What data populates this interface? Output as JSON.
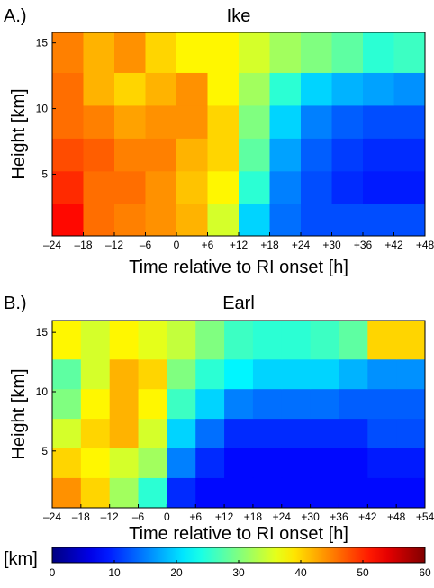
{
  "chart_data": [
    {
      "type": "heatmap",
      "panel_label": "A.)",
      "title": "Ike",
      "xlabel": "Time relative to RI onset [h]",
      "ylabel": "Height [km]",
      "xlim": [
        -24,
        48
      ],
      "ylim": [
        0.3,
        15.8
      ],
      "xticks": [
        {
          "value": -24,
          "label": "–24"
        },
        {
          "value": -18,
          "label": "–18"
        },
        {
          "value": -12,
          "label": "–12"
        },
        {
          "value": -6,
          "label": "–6"
        },
        0,
        {
          "value": 6,
          "label": "+6"
        },
        {
          "value": 12,
          "label": "+12"
        },
        {
          "value": 18,
          "label": "+18"
        },
        {
          "value": 24,
          "label": "+24"
        },
        {
          "value": 30,
          "label": "+30"
        },
        {
          "value": 36,
          "label": "+36"
        },
        {
          "value": 42,
          "label": "+42"
        },
        {
          "value": 48,
          "label": "+48"
        }
      ],
      "yticks": [
        5,
        10,
        15
      ],
      "x": [
        -21,
        -15,
        -9,
        -3,
        3,
        9,
        15,
        21,
        27,
        33,
        39,
        45
      ],
      "y": [
        1.5,
        4,
        6.5,
        9,
        11.5,
        14
      ],
      "z": [
        [
          52,
          46,
          45,
          44,
          42,
          35,
          20,
          14,
          12,
          12,
          12,
          12
        ],
        [
          50,
          46,
          46,
          44,
          41,
          38,
          25,
          15,
          12,
          10,
          9,
          9
        ],
        [
          48,
          47,
          45,
          45,
          42,
          40,
          28,
          17,
          13,
          11,
          10,
          10
        ],
        [
          46,
          45,
          43,
          44,
          44,
          40,
          30,
          20,
          15,
          13,
          12,
          12
        ],
        [
          46,
          42,
          40,
          42,
          44,
          38,
          32,
          25,
          20,
          18,
          17,
          16
        ],
        [
          45,
          42,
          44,
          40,
          38,
          38,
          35,
          32,
          30,
          28,
          25,
          26
        ]
      ]
    },
    {
      "type": "heatmap",
      "panel_label": "B.)",
      "title": "Earl",
      "xlabel": "Time relative to RI onset [h]",
      "ylabel": "Height [km]",
      "xlim": [
        -24,
        54
      ],
      "ylim": [
        0.2,
        16
      ],
      "xticks": [
        {
          "value": -24,
          "label": "–24"
        },
        {
          "value": -18,
          "label": "–18"
        },
        {
          "value": -12,
          "label": "–12"
        },
        {
          "value": -6,
          "label": "–6"
        },
        0,
        {
          "value": 6,
          "label": "+6"
        },
        {
          "value": 12,
          "label": "+12"
        },
        {
          "value": 18,
          "label": "+18"
        },
        {
          "value": 24,
          "label": "+24"
        },
        {
          "value": 30,
          "label": "+30"
        },
        {
          "value": 36,
          "label": "+36"
        },
        {
          "value": 42,
          "label": "+42"
        },
        {
          "value": 48,
          "label": "+48"
        },
        {
          "value": 54,
          "label": "+54"
        }
      ],
      "yticks": [
        5,
        10,
        15
      ],
      "x": [
        -21,
        -15,
        -9,
        -3,
        3,
        9,
        15,
        21,
        27,
        33,
        39,
        45,
        51
      ],
      "y": [
        1.5,
        4,
        6.5,
        9,
        11.5,
        14
      ],
      "z": [
        [
          44,
          40,
          32,
          25,
          10,
          8,
          8,
          8,
          8,
          8,
          8,
          8,
          8
        ],
        [
          40,
          38,
          35,
          32,
          15,
          10,
          8,
          8,
          8,
          8,
          8,
          9,
          9
        ],
        [
          35,
          40,
          42,
          35,
          20,
          14,
          10,
          10,
          10,
          10,
          10,
          12,
          12
        ],
        [
          30,
          38,
          42,
          38,
          26,
          20,
          15,
          14,
          14,
          14,
          13,
          13,
          13
        ],
        [
          28,
          35,
          42,
          40,
          30,
          25,
          22,
          20,
          20,
          20,
          18,
          16,
          16
        ],
        [
          38,
          35,
          38,
          36,
          34,
          30,
          26,
          25,
          25,
          26,
          28,
          40,
          40
        ]
      ]
    }
  ],
  "colorbar": {
    "label": "[km]",
    "colormap": "jet",
    "clim": [
      0,
      60
    ],
    "ticks": [
      0,
      10,
      20,
      30,
      40,
      50,
      60
    ]
  }
}
